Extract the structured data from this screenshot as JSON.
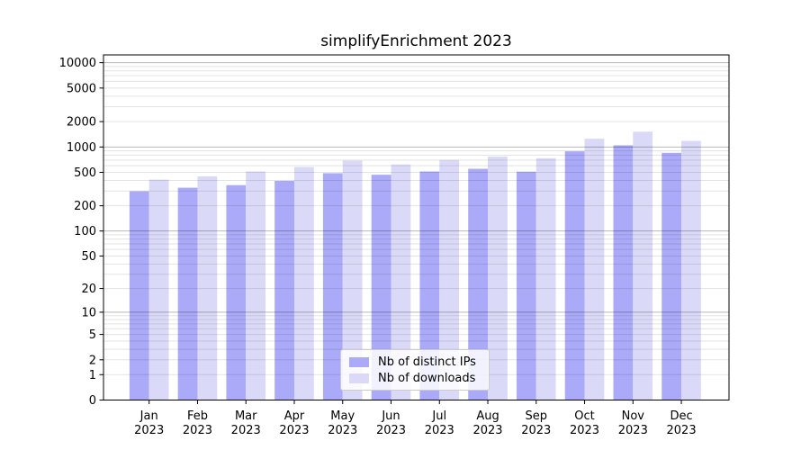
{
  "chart_data": {
    "type": "bar",
    "title": "simplifyEnrichment 2023",
    "y_axis": {
      "scale": "log1p",
      "tick_values": [
        0,
        1,
        2,
        5,
        10,
        20,
        50,
        100,
        200,
        500,
        1000,
        2000,
        5000,
        10000
      ],
      "major_grid_values": [
        10,
        100,
        1000,
        10000
      ],
      "range": [
        0,
        10000
      ],
      "grid": "on"
    },
    "categories": [
      {
        "month": "Jan",
        "year": "2023"
      },
      {
        "month": "Feb",
        "year": "2023"
      },
      {
        "month": "Mar",
        "year": "2023"
      },
      {
        "month": "Apr",
        "year": "2023"
      },
      {
        "month": "May",
        "year": "2023"
      },
      {
        "month": "Jun",
        "year": "2023"
      },
      {
        "month": "Jul",
        "year": "2023"
      },
      {
        "month": "Aug",
        "year": "2023"
      },
      {
        "month": "Sep",
        "year": "2023"
      },
      {
        "month": "Oct",
        "year": "2023"
      },
      {
        "month": "Nov",
        "year": "2023"
      },
      {
        "month": "Dec",
        "year": "2023"
      }
    ],
    "series": [
      {
        "name": "Nb of distinct IPs",
        "color": "#aaaaf8",
        "values": [
          298,
          328,
          352,
          396,
          488,
          468,
          512,
          551,
          509,
          888,
          1047,
          853
        ]
      },
      {
        "name": "Nb of downloads",
        "color": "#dadaf8",
        "values": [
          410,
          448,
          512,
          578,
          690,
          620,
          700,
          770,
          736,
          1254,
          1520,
          1183
        ]
      }
    ],
    "legend_position": "bottom-center",
    "colors": {
      "axis": "#000000",
      "major_grid": "rgba(0,0,0,0.28)",
      "minor_grid": "rgba(0,0,0,0.11)",
      "background": "#ffffff"
    }
  }
}
